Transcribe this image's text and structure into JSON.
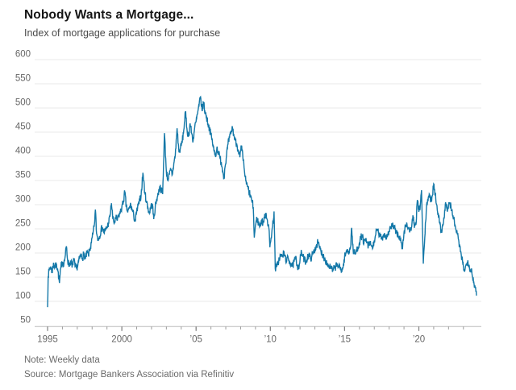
{
  "chart_data": {
    "type": "line",
    "title": "Nobody Wants a Mortgage...",
    "subtitle": "Index of mortgage applications for purchase",
    "note": "Note: Weekly data",
    "source": "Source: Mortgage Bankers Association via Refinitiv",
    "frequency": "weekly",
    "line_color": "#1478a8",
    "grid_color": "#e8e8e8",
    "axis_color": "#bcbcbc",
    "tick_color": "#9a9a9a",
    "label_color": "#666666",
    "ylim": [
      50,
      600
    ],
    "y_ticks": [
      50,
      100,
      150,
      200,
      250,
      300,
      350,
      400,
      450,
      500,
      550,
      600
    ],
    "x_range": [
      1995,
      2024.1
    ],
    "x_minor_tick_step": 1,
    "x_major_ticks": [
      {
        "year": 1995,
        "label": "1995"
      },
      {
        "year": 2000,
        "label": "2000"
      },
      {
        "year": 2005,
        "label": "’05"
      },
      {
        "year": 2010,
        "label": "’10"
      },
      {
        "year": 2015,
        "label": "’15"
      },
      {
        "year": 2020,
        "label": "’20"
      }
    ],
    "grid": true,
    "legend": "none",
    "noise_amplitude": 8,
    "series": [
      {
        "name": "Index of mortgage applications for purchase",
        "points": [
          [
            1995.0,
            88
          ],
          [
            1995.04,
            152
          ],
          [
            1995.1,
            163
          ],
          [
            1995.2,
            172
          ],
          [
            1995.3,
            160
          ],
          [
            1995.4,
            180
          ],
          [
            1995.5,
            170
          ],
          [
            1995.6,
            178
          ],
          [
            1995.7,
            162
          ],
          [
            1995.8,
            138
          ],
          [
            1995.9,
            172
          ],
          [
            1996.0,
            182
          ],
          [
            1996.1,
            178
          ],
          [
            1996.2,
            196
          ],
          [
            1996.27,
            214
          ],
          [
            1996.35,
            185
          ],
          [
            1996.45,
            175
          ],
          [
            1996.55,
            183
          ],
          [
            1996.65,
            170
          ],
          [
            1996.75,
            188
          ],
          [
            1996.85,
            172
          ],
          [
            1996.95,
            168
          ],
          [
            1997.05,
            178
          ],
          [
            1997.15,
            188
          ],
          [
            1997.25,
            196
          ],
          [
            1997.35,
            190
          ],
          [
            1997.45,
            198
          ],
          [
            1997.55,
            188
          ],
          [
            1997.65,
            200
          ],
          [
            1997.75,
            196
          ],
          [
            1997.85,
            208
          ],
          [
            1997.95,
            220
          ],
          [
            1998.05,
            238
          ],
          [
            1998.15,
            258
          ],
          [
            1998.22,
            290
          ],
          [
            1998.3,
            240
          ],
          [
            1998.4,
            228
          ],
          [
            1998.5,
            235
          ],
          [
            1998.6,
            248
          ],
          [
            1998.7,
            253
          ],
          [
            1998.8,
            242
          ],
          [
            1998.9,
            248
          ],
          [
            1999.0,
            253
          ],
          [
            1999.1,
            262
          ],
          [
            1999.2,
            275
          ],
          [
            1999.3,
            303
          ],
          [
            1999.4,
            270
          ],
          [
            1999.5,
            262
          ],
          [
            1999.6,
            272
          ],
          [
            1999.7,
            268
          ],
          [
            1999.8,
            278
          ],
          [
            1999.9,
            284
          ],
          [
            2000.0,
            295
          ],
          [
            2000.1,
            305
          ],
          [
            2000.2,
            327
          ],
          [
            2000.3,
            295
          ],
          [
            2000.4,
            285
          ],
          [
            2000.5,
            292
          ],
          [
            2000.6,
            300
          ],
          [
            2000.7,
            288
          ],
          [
            2000.8,
            278
          ],
          [
            2000.9,
            265
          ],
          [
            2001.0,
            285
          ],
          [
            2001.1,
            298
          ],
          [
            2001.2,
            308
          ],
          [
            2001.3,
            320
          ],
          [
            2001.42,
            366
          ],
          [
            2001.55,
            325
          ],
          [
            2001.65,
            308
          ],
          [
            2001.75,
            295
          ],
          [
            2001.85,
            282
          ],
          [
            2001.95,
            295
          ],
          [
            2002.05,
            302
          ],
          [
            2002.15,
            270
          ],
          [
            2002.25,
            295
          ],
          [
            2002.35,
            312
          ],
          [
            2002.45,
            322
          ],
          [
            2002.55,
            338
          ],
          [
            2002.65,
            330
          ],
          [
            2002.75,
            322
          ],
          [
            2002.87,
            448
          ],
          [
            2003.0,
            368
          ],
          [
            2003.1,
            352
          ],
          [
            2003.2,
            362
          ],
          [
            2003.3,
            372
          ],
          [
            2003.4,
            362
          ],
          [
            2003.5,
            385
          ],
          [
            2003.6,
            402
          ],
          [
            2003.72,
            458
          ],
          [
            2003.85,
            408
          ],
          [
            2003.95,
            418
          ],
          [
            2004.05,
            428
          ],
          [
            2004.15,
            448
          ],
          [
            2004.28,
            492
          ],
          [
            2004.4,
            452
          ],
          [
            2004.5,
            442
          ],
          [
            2004.6,
            468
          ],
          [
            2004.7,
            448
          ],
          [
            2004.8,
            432
          ],
          [
            2004.9,
            458
          ],
          [
            2005.0,
            472
          ],
          [
            2005.1,
            488
          ],
          [
            2005.2,
            505
          ],
          [
            2005.3,
            523
          ],
          [
            2005.4,
            495
          ],
          [
            2005.5,
            512
          ],
          [
            2005.6,
            492
          ],
          [
            2005.7,
            482
          ],
          [
            2005.8,
            468
          ],
          [
            2005.9,
            458
          ],
          [
            2006.0,
            444
          ],
          [
            2006.1,
            430
          ],
          [
            2006.2,
            412
          ],
          [
            2006.3,
            400
          ],
          [
            2006.4,
            418
          ],
          [
            2006.5,
            408
          ],
          [
            2006.6,
            398
          ],
          [
            2006.7,
            388
          ],
          [
            2006.8,
            368
          ],
          [
            2006.88,
            358
          ],
          [
            2006.95,
            378
          ],
          [
            2007.05,
            402
          ],
          [
            2007.15,
            425
          ],
          [
            2007.25,
            438
          ],
          [
            2007.35,
            448
          ],
          [
            2007.45,
            460
          ],
          [
            2007.55,
            442
          ],
          [
            2007.65,
            432
          ],
          [
            2007.75,
            424
          ],
          [
            2007.85,
            412
          ],
          [
            2007.95,
            398
          ],
          [
            2008.05,
            420
          ],
          [
            2008.15,
            398
          ],
          [
            2008.25,
            372
          ],
          [
            2008.35,
            348
          ],
          [
            2008.45,
            338
          ],
          [
            2008.55,
            328
          ],
          [
            2008.65,
            318
          ],
          [
            2008.75,
            308
          ],
          [
            2008.85,
            295
          ],
          [
            2008.92,
            232
          ],
          [
            2009.0,
            258
          ],
          [
            2009.1,
            272
          ],
          [
            2009.2,
            262
          ],
          [
            2009.3,
            255
          ],
          [
            2009.4,
            268
          ],
          [
            2009.5,
            262
          ],
          [
            2009.6,
            272
          ],
          [
            2009.7,
            283
          ],
          [
            2009.8,
            268
          ],
          [
            2009.9,
            252
          ],
          [
            2009.97,
            212
          ],
          [
            2010.05,
            232
          ],
          [
            2010.15,
            255
          ],
          [
            2010.25,
            286
          ],
          [
            2010.33,
            168
          ],
          [
            2010.42,
            172
          ],
          [
            2010.5,
            178
          ],
          [
            2010.6,
            188
          ],
          [
            2010.7,
            196
          ],
          [
            2010.8,
            192
          ],
          [
            2010.9,
            200
          ],
          [
            2011.0,
            192
          ],
          [
            2011.1,
            183
          ],
          [
            2011.2,
            190
          ],
          [
            2011.3,
            182
          ],
          [
            2011.4,
            178
          ],
          [
            2011.5,
            172
          ],
          [
            2011.6,
            182
          ],
          [
            2011.7,
            190
          ],
          [
            2011.8,
            176
          ],
          [
            2011.9,
            170
          ],
          [
            2012.0,
            186
          ],
          [
            2012.1,
            202
          ],
          [
            2012.2,
            192
          ],
          [
            2012.3,
            186
          ],
          [
            2012.4,
            182
          ],
          [
            2012.5,
            192
          ],
          [
            2012.6,
            196
          ],
          [
            2012.7,
            188
          ],
          [
            2012.8,
            194
          ],
          [
            2012.9,
            200
          ],
          [
            2013.0,
            208
          ],
          [
            2013.1,
            216
          ],
          [
            2013.2,
            222
          ],
          [
            2013.3,
            212
          ],
          [
            2013.4,
            205
          ],
          [
            2013.5,
            198
          ],
          [
            2013.6,
            192
          ],
          [
            2013.7,
            186
          ],
          [
            2013.8,
            180
          ],
          [
            2013.9,
            174
          ],
          [
            2014.0,
            172
          ],
          [
            2014.1,
            168
          ],
          [
            2014.2,
            163
          ],
          [
            2014.3,
            168
          ],
          [
            2014.4,
            172
          ],
          [
            2014.5,
            176
          ],
          [
            2014.6,
            172
          ],
          [
            2014.7,
            168
          ],
          [
            2014.8,
            165
          ],
          [
            2014.9,
            170
          ],
          [
            2015.0,
            192
          ],
          [
            2015.1,
            200
          ],
          [
            2015.2,
            208
          ],
          [
            2015.3,
            202
          ],
          [
            2015.4,
            212
          ],
          [
            2015.48,
            252
          ],
          [
            2015.58,
            204
          ],
          [
            2015.7,
            198
          ],
          [
            2015.8,
            204
          ],
          [
            2015.9,
            212
          ],
          [
            2016.0,
            222
          ],
          [
            2016.1,
            232
          ],
          [
            2016.2,
            236
          ],
          [
            2016.3,
            220
          ],
          [
            2016.4,
            226
          ],
          [
            2016.5,
            222
          ],
          [
            2016.6,
            214
          ],
          [
            2016.7,
            220
          ],
          [
            2016.8,
            216
          ],
          [
            2016.9,
            210
          ],
          [
            2017.0,
            226
          ],
          [
            2017.1,
            238
          ],
          [
            2017.2,
            248
          ],
          [
            2017.3,
            240
          ],
          [
            2017.4,
            234
          ],
          [
            2017.5,
            230
          ],
          [
            2017.6,
            236
          ],
          [
            2017.7,
            240
          ],
          [
            2017.8,
            232
          ],
          [
            2017.9,
            238
          ],
          [
            2018.0,
            246
          ],
          [
            2018.1,
            252
          ],
          [
            2018.2,
            258
          ],
          [
            2018.3,
            252
          ],
          [
            2018.4,
            248
          ],
          [
            2018.5,
            243
          ],
          [
            2018.6,
            238
          ],
          [
            2018.7,
            232
          ],
          [
            2018.8,
            222
          ],
          [
            2018.9,
            208
          ],
          [
            2019.0,
            242
          ],
          [
            2019.1,
            255
          ],
          [
            2019.2,
            260
          ],
          [
            2019.3,
            252
          ],
          [
            2019.4,
            246
          ],
          [
            2019.5,
            252
          ],
          [
            2019.6,
            278
          ],
          [
            2019.7,
            252
          ],
          [
            2019.8,
            258
          ],
          [
            2019.9,
            310
          ],
          [
            2020.0,
            285
          ],
          [
            2020.1,
            300
          ],
          [
            2020.18,
            330
          ],
          [
            2020.3,
            178
          ],
          [
            2020.4,
            232
          ],
          [
            2020.5,
            288
          ],
          [
            2020.6,
            312
          ],
          [
            2020.7,
            322
          ],
          [
            2020.8,
            305
          ],
          [
            2020.9,
            318
          ],
          [
            2021.0,
            343
          ],
          [
            2021.1,
            322
          ],
          [
            2021.2,
            300
          ],
          [
            2021.3,
            283
          ],
          [
            2021.4,
            262
          ],
          [
            2021.5,
            244
          ],
          [
            2021.6,
            258
          ],
          [
            2021.7,
            272
          ],
          [
            2021.8,
            305
          ],
          [
            2021.9,
            288
          ],
          [
            2022.0,
            298
          ],
          [
            2022.1,
            303
          ],
          [
            2022.2,
            288
          ],
          [
            2022.3,
            278
          ],
          [
            2022.4,
            262
          ],
          [
            2022.5,
            248
          ],
          [
            2022.6,
            238
          ],
          [
            2022.7,
            222
          ],
          [
            2022.8,
            202
          ],
          [
            2022.9,
            188
          ],
          [
            2023.0,
            172
          ],
          [
            2023.1,
            164
          ],
          [
            2023.2,
            176
          ],
          [
            2023.3,
            185
          ],
          [
            2023.4,
            172
          ],
          [
            2023.5,
            160
          ],
          [
            2023.55,
            168
          ],
          [
            2023.62,
            150
          ],
          [
            2023.7,
            140
          ],
          [
            2023.78,
            132
          ],
          [
            2023.84,
            120
          ],
          [
            2023.88,
            112
          ]
        ]
      }
    ]
  }
}
